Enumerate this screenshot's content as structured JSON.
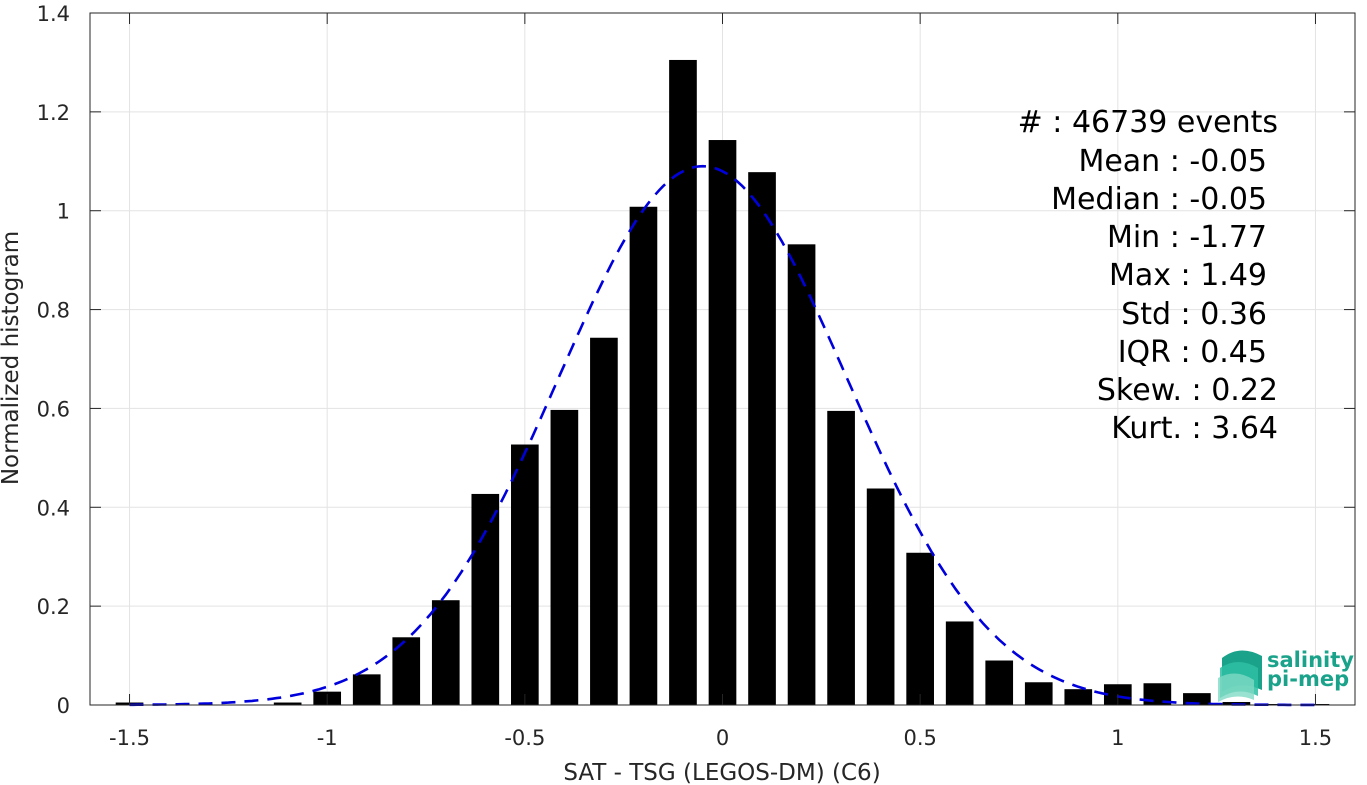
{
  "chart_data": {
    "type": "bar",
    "xlabel": "SAT - TSG (LEGOS-DM) (C6)",
    "ylabel": "Normalized histogram",
    "xlim": [
      -1.6,
      1.6
    ],
    "ylim": [
      0,
      1.4
    ],
    "xticks": [
      -1.5,
      -1,
      -0.5,
      0,
      0.5,
      1,
      1.5
    ],
    "xtick_labels": [
      "-1.5",
      "-1",
      "-0.5",
      "0",
      "0.5",
      "1",
      "1.5"
    ],
    "yticks": [
      0,
      0.2,
      0.4,
      0.6,
      0.8,
      1,
      1.2,
      1.4
    ],
    "ytick_labels": [
      "0",
      "0.2",
      "0.4",
      "0.6",
      "0.8",
      "1",
      "1.2",
      "1.4"
    ],
    "grid": true,
    "bar_color": "#000000",
    "bar_width": 0.07,
    "bins": [
      {
        "x": -1.5,
        "y": 0.005
      },
      {
        "x": -1.4,
        "y": 0.0
      },
      {
        "x": -1.3,
        "y": 0.0
      },
      {
        "x": -1.2,
        "y": 0.0
      },
      {
        "x": -1.1,
        "y": 0.005
      },
      {
        "x": -1.0,
        "y": 0.027
      },
      {
        "x": -0.9,
        "y": 0.062
      },
      {
        "x": -0.8,
        "y": 0.137
      },
      {
        "x": -0.7,
        "y": 0.212
      },
      {
        "x": -0.6,
        "y": 0.427
      },
      {
        "x": -0.5,
        "y": 0.527
      },
      {
        "x": -0.4,
        "y": 0.597
      },
      {
        "x": -0.3,
        "y": 0.743
      },
      {
        "x": -0.2,
        "y": 1.008
      },
      {
        "x": -0.1,
        "y": 1.305
      },
      {
        "x": 0.0,
        "y": 1.143
      },
      {
        "x": 0.1,
        "y": 1.078
      },
      {
        "x": 0.2,
        "y": 0.932
      },
      {
        "x": 0.3,
        "y": 0.595
      },
      {
        "x": 0.4,
        "y": 0.438
      },
      {
        "x": 0.5,
        "y": 0.308
      },
      {
        "x": 0.6,
        "y": 0.169
      },
      {
        "x": 0.7,
        "y": 0.09
      },
      {
        "x": 0.8,
        "y": 0.046
      },
      {
        "x": 0.9,
        "y": 0.032
      },
      {
        "x": 1.0,
        "y": 0.042
      },
      {
        "x": 1.1,
        "y": 0.044
      },
      {
        "x": 1.2,
        "y": 0.024
      },
      {
        "x": 1.3,
        "y": 0.006
      },
      {
        "x": 1.4,
        "y": 0.002
      },
      {
        "x": 1.5,
        "y": 0.002
      }
    ],
    "fit_curve": {
      "color": "#0000dd",
      "style": "dashed",
      "mean": -0.05,
      "std": 0.365,
      "peak": 1.09,
      "x_range": [
        -1.5,
        1.5
      ]
    }
  },
  "stats": [
    {
      "label": "#  : 46739 events"
    },
    {
      "label": "Mean : -0.05"
    },
    {
      "label": "Median : -0.05"
    },
    {
      "label": "Min : -1.77"
    },
    {
      "label": "Max : 1.49"
    },
    {
      "label": "Std : 0.36"
    },
    {
      "label": "IQR : 0.45"
    },
    {
      "label": "Skew. : 0.22"
    },
    {
      "label": "Kurt. : 3.64"
    }
  ],
  "logo": {
    "line1": "salinity",
    "line2": "pi-mep",
    "colors": [
      "#1aa38a",
      "#2fc0a3",
      "#7fd9c4"
    ]
  }
}
